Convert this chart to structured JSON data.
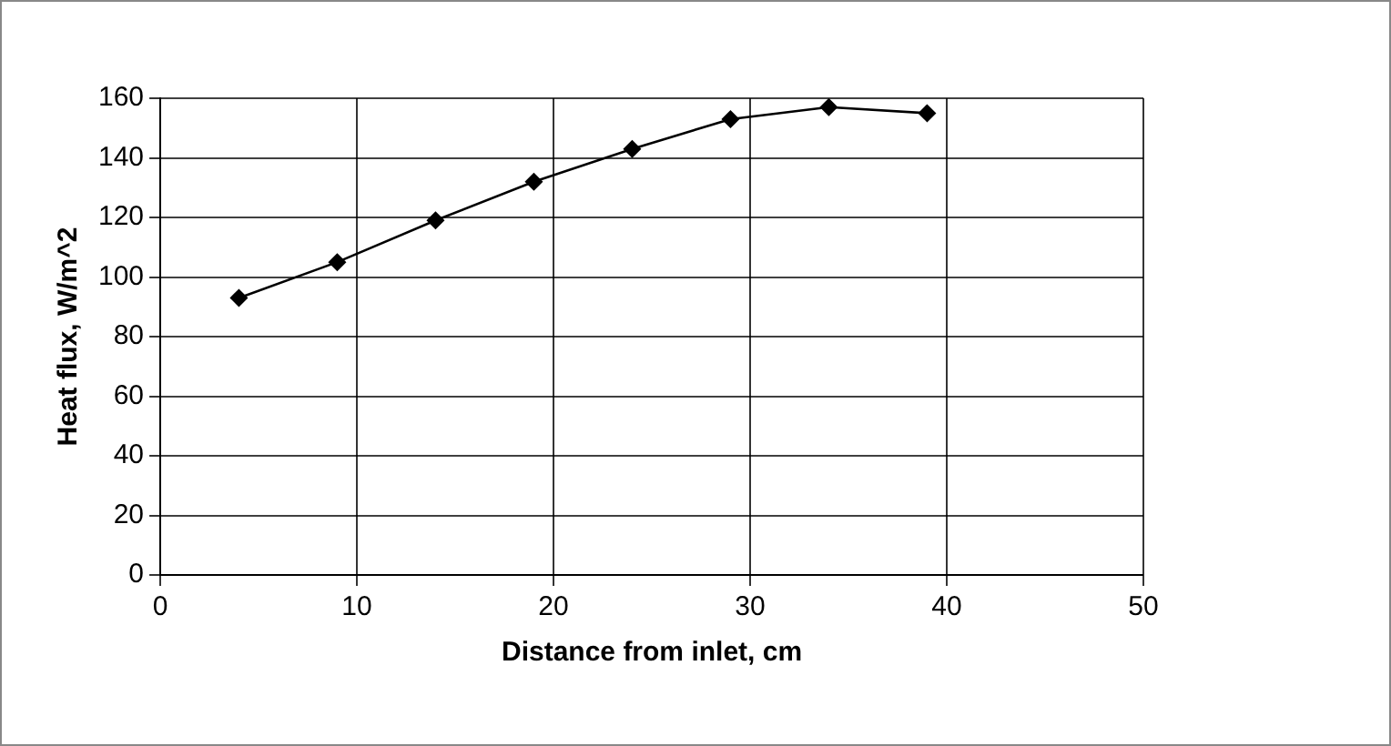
{
  "chart_data": {
    "type": "line",
    "xlabel": "Distance from inlet, cm",
    "ylabel": "Heat flux, W/m^2",
    "x": [
      4,
      9,
      14,
      19,
      24,
      29,
      34,
      39
    ],
    "series": [
      {
        "color": "#000000",
        "values": [
          93,
          105,
          119,
          132,
          143,
          153,
          157,
          155
        ]
      }
    ],
    "xlim": [
      0,
      50
    ],
    "xticks": [
      0,
      10,
      20,
      30,
      40,
      50
    ],
    "ylim": [
      0,
      160
    ],
    "yticks": [
      0,
      20,
      40,
      60,
      80,
      100,
      120,
      140,
      160
    ],
    "grid": true,
    "legend": false,
    "marker": "diamond",
    "line_style": "solid"
  }
}
